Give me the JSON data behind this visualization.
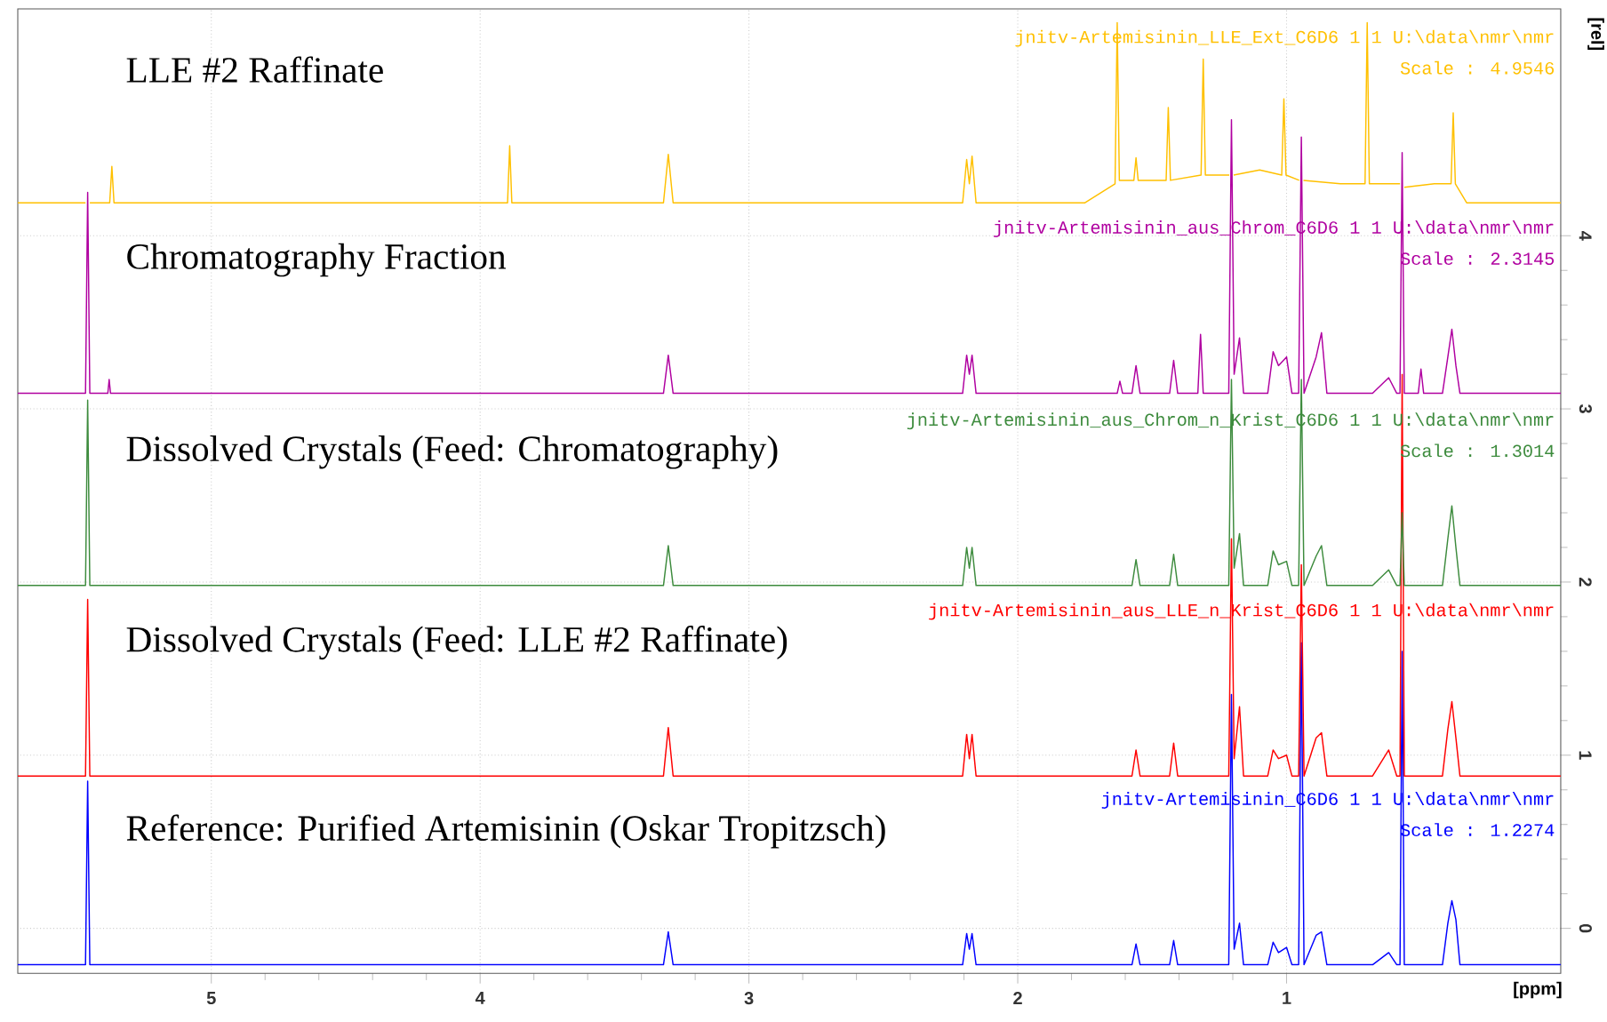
{
  "chart_data": {
    "type": "line",
    "xlabel": "[ppm]",
    "ylabel": "[rel]",
    "xlim": [
      5.72,
      -0.02
    ],
    "ylim": [
      -0.26,
      5.31
    ],
    "xticks": [
      5,
      4,
      3,
      2,
      1
    ],
    "yticks": [
      0,
      1,
      2,
      3,
      4
    ],
    "grid": true,
    "series": [
      {
        "name": "LLE #2 Raffinate",
        "color": "#ffc000",
        "x": [
          5.72,
          5.468,
          5.46,
          5.452,
          5.378,
          5.37,
          5.362,
          3.898,
          3.89,
          3.882,
          3.318,
          3.3,
          3.282,
          2.205,
          2.19,
          2.18,
          2.17,
          2.155,
          1.75,
          1.638,
          1.63,
          1.622,
          1.568,
          1.56,
          1.552,
          1.448,
          1.44,
          1.432,
          1.318,
          1.31,
          1.302,
          1.213,
          1.205,
          1.197,
          1.1,
          1.018,
          1.01,
          1.002,
          0.953,
          0.945,
          0.937,
          0.8,
          0.708,
          0.7,
          0.692,
          0.578,
          0.57,
          0.562,
          0.45,
          0.388,
          0.38,
          0.372,
          0.33,
          -0.02
        ],
        "values": [
          4.19,
          4.19,
          null,
          4.19,
          4.19,
          4.4,
          4.19,
          4.19,
          4.52,
          4.19,
          4.19,
          4.47,
          4.19,
          4.19,
          4.44,
          4.3,
          4.46,
          4.19,
          4.19,
          4.3,
          5.23,
          4.32,
          4.32,
          4.45,
          4.32,
          4.32,
          4.74,
          4.32,
          4.35,
          5.02,
          4.35,
          4.35,
          null,
          4.35,
          4.38,
          4.35,
          4.79,
          4.35,
          4.32,
          null,
          4.32,
          4.3,
          4.3,
          5.23,
          4.3,
          4.3,
          null,
          4.28,
          4.3,
          4.3,
          4.71,
          4.3,
          4.19,
          4.19
        ]
      },
      {
        "name": "Chromatography Fraction",
        "color": "#b000a0",
        "x": [
          5.72,
          5.468,
          5.46,
          5.452,
          5.385,
          5.38,
          5.375,
          3.318,
          3.3,
          3.282,
          2.205,
          2.19,
          2.18,
          2.17,
          2.155,
          1.63,
          1.62,
          1.61,
          1.575,
          1.56,
          1.545,
          1.435,
          1.42,
          1.405,
          1.33,
          1.32,
          1.31,
          1.215,
          1.205,
          1.195,
          1.175,
          1.16,
          1.07,
          1.05,
          1.03,
          1.0,
          0.98,
          0.955,
          0.945,
          0.935,
          0.89,
          0.87,
          0.85,
          0.68,
          0.62,
          0.59,
          0.578,
          0.57,
          0.562,
          0.51,
          0.5,
          0.49,
          0.42,
          0.4,
          0.385,
          0.37,
          0.355,
          -0.02
        ],
        "values": [
          3.09,
          3.09,
          4.25,
          3.09,
          3.09,
          3.17,
          3.09,
          3.09,
          3.31,
          3.09,
          3.09,
          3.31,
          3.2,
          3.31,
          3.09,
          3.09,
          3.16,
          3.09,
          3.09,
          3.25,
          3.09,
          3.09,
          3.28,
          3.09,
          3.09,
          3.43,
          3.09,
          3.09,
          4.67,
          3.2,
          3.41,
          3.09,
          3.09,
          3.33,
          3.25,
          3.3,
          3.09,
          3.09,
          4.57,
          3.09,
          3.3,
          3.44,
          3.09,
          3.09,
          3.18,
          3.09,
          3.09,
          4.48,
          3.09,
          3.09,
          3.23,
          3.09,
          3.09,
          3.3,
          3.46,
          3.25,
          3.09,
          3.09
        ]
      },
      {
        "name": "Dissolved Crystals (Feed: Chromatography)",
        "color": "#3d8b3d",
        "x": [
          5.72,
          5.468,
          5.46,
          5.452,
          3.318,
          3.3,
          3.282,
          2.205,
          2.19,
          2.18,
          2.17,
          2.155,
          1.575,
          1.56,
          1.545,
          1.435,
          1.42,
          1.405,
          1.215,
          1.205,
          1.195,
          1.175,
          1.16,
          1.07,
          1.05,
          1.03,
          1.0,
          0.98,
          0.955,
          0.945,
          0.935,
          0.89,
          0.87,
          0.85,
          0.68,
          0.62,
          0.59,
          0.578,
          0.57,
          0.562,
          0.42,
          0.4,
          0.385,
          0.37,
          0.355,
          -0.02
        ],
        "values": [
          1.98,
          1.98,
          3.05,
          1.98,
          1.98,
          2.21,
          1.98,
          1.98,
          2.2,
          2.08,
          2.2,
          1.98,
          1.98,
          2.13,
          1.98,
          1.98,
          2.16,
          1.98,
          1.98,
          3.17,
          2.08,
          2.28,
          1.98,
          1.98,
          2.18,
          2.1,
          2.12,
          1.98,
          1.98,
          3.17,
          1.98,
          2.15,
          2.21,
          1.98,
          1.98,
          2.07,
          1.98,
          1.98,
          2.4,
          1.98,
          1.98,
          2.25,
          2.44,
          2.2,
          1.98,
          1.98
        ]
      },
      {
        "name": "Dissolved Crystals (Feed: LLE #2 Raffinate)",
        "color": "#ff0000",
        "x": [
          5.72,
          5.468,
          5.46,
          5.452,
          3.318,
          3.3,
          3.282,
          2.205,
          2.19,
          2.18,
          2.17,
          2.155,
          1.575,
          1.56,
          1.545,
          1.435,
          1.42,
          1.405,
          1.215,
          1.205,
          1.195,
          1.175,
          1.16,
          1.07,
          1.05,
          1.03,
          1.0,
          0.98,
          0.955,
          0.945,
          0.935,
          0.89,
          0.87,
          0.85,
          0.68,
          0.62,
          0.59,
          0.578,
          0.57,
          0.562,
          0.42,
          0.4,
          0.385,
          0.37,
          0.355,
          -0.02
        ],
        "values": [
          0.88,
          0.88,
          1.9,
          0.88,
          0.88,
          1.16,
          0.88,
          0.88,
          1.12,
          0.98,
          1.12,
          0.88,
          0.88,
          1.03,
          0.88,
          0.88,
          1.07,
          0.88,
          0.88,
          2.25,
          0.98,
          1.28,
          0.88,
          0.88,
          1.03,
          0.98,
          1.0,
          0.88,
          0.88,
          2.1,
          0.88,
          1.1,
          1.13,
          0.88,
          0.88,
          1.03,
          0.88,
          0.88,
          3.2,
          0.88,
          0.88,
          1.15,
          1.31,
          1.1,
          0.88,
          0.88
        ]
      },
      {
        "name": "Reference: Purified Artemisinin (Oskar Tropitzsch)",
        "color": "#0000ff",
        "x": [
          5.72,
          5.468,
          5.46,
          5.452,
          3.318,
          3.3,
          3.282,
          2.205,
          2.19,
          2.18,
          2.17,
          2.155,
          1.575,
          1.56,
          1.545,
          1.435,
          1.42,
          1.405,
          1.215,
          1.205,
          1.195,
          1.175,
          1.16,
          1.07,
          1.05,
          1.03,
          1.0,
          0.98,
          0.955,
          0.945,
          0.935,
          0.89,
          0.87,
          0.85,
          0.68,
          0.62,
          0.59,
          0.578,
          0.57,
          0.562,
          0.42,
          0.4,
          0.385,
          0.37,
          0.355,
          -0.02
        ],
        "values": [
          -0.21,
          -0.21,
          0.85,
          -0.21,
          -0.21,
          -0.02,
          -0.21,
          -0.21,
          -0.03,
          -0.12,
          -0.03,
          -0.21,
          -0.21,
          -0.09,
          -0.21,
          -0.21,
          -0.07,
          -0.21,
          -0.21,
          1.35,
          -0.12,
          0.03,
          -0.21,
          -0.21,
          -0.08,
          -0.14,
          -0.11,
          -0.21,
          -0.21,
          1.65,
          -0.21,
          -0.04,
          -0.02,
          -0.21,
          -0.21,
          -0.14,
          -0.21,
          -0.21,
          1.6,
          -0.21,
          -0.21,
          0.03,
          0.16,
          0.05,
          -0.21,
          -0.21
        ]
      }
    ],
    "annotations": [
      "jnitv-Artemisinin_LLE_Ext_C6D6 1 1 U:\\data\\nmr\\nmr",
      "Scale : 4.9546",
      "jnitv-Artemisinin_aus_Chrom_C6D6 1 1 U:\\data\\nmr\\nmr",
      "Scale : 2.3145",
      "jnitv-Artemisinin_aus_Chrom_n_Krist_C6D6 1 1 U:\\data\\nmr\\nmr",
      "Scale : 1.3014",
      "jnitv-Artemisinin_aus_LLE_n_Krist_C6D6 1 1 U:\\data\\nmr\\nmr",
      "jnitv-Artemisinin_C6D6 1 1 U:\\data\\nmr\\nmr",
      "Scale : 1.2274"
    ]
  }
}
